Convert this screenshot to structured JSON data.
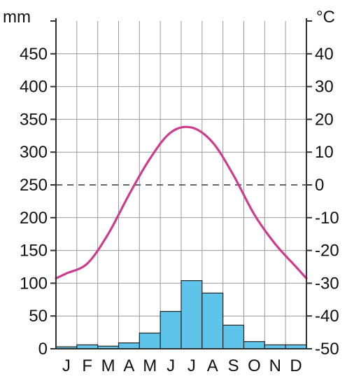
{
  "chart_data": {
    "type": "climate-diagram",
    "left_unit": "mm",
    "right_unit": "°C",
    "categories": [
      "J",
      "F",
      "M",
      "A",
      "M",
      "J",
      "J",
      "A",
      "S",
      "O",
      "N",
      "D"
    ],
    "left_axis": {
      "min": 0,
      "max": 500,
      "ticks": [
        0,
        50,
        100,
        150,
        200,
        250,
        300,
        350,
        400,
        450
      ]
    },
    "right_axis": {
      "min": -50,
      "max": 50,
      "ticks": [
        -50,
        -40,
        -30,
        -20,
        -10,
        0,
        10,
        20,
        30,
        40
      ]
    },
    "left_tick_labels": [
      "0",
      "50",
      "100",
      "150",
      "200",
      "250",
      "300",
      "350",
      "400",
      "450"
    ],
    "right_tick_labels": [
      "-50",
      "-40",
      "-30",
      "-20",
      "-10",
      "0",
      "10",
      "20",
      "30",
      "40"
    ],
    "precipitation_mm": [
      3,
      6,
      4,
      9,
      24,
      57,
      104,
      85,
      36,
      11,
      6,
      6
    ],
    "temperature_c": [
      -27,
      -24,
      -15,
      -3,
      8,
      16,
      17.5,
      13,
      3,
      -9,
      -18,
      -25
    ],
    "grid": true,
    "zero_line_dashed": true,
    "colors": {
      "bars": "#5ec4ea",
      "bar_stroke": "#222222",
      "temperature": "#cc3d8e",
      "grid": "#9a9a9a",
      "axis": "#333333",
      "zero_line": "#666666"
    }
  }
}
